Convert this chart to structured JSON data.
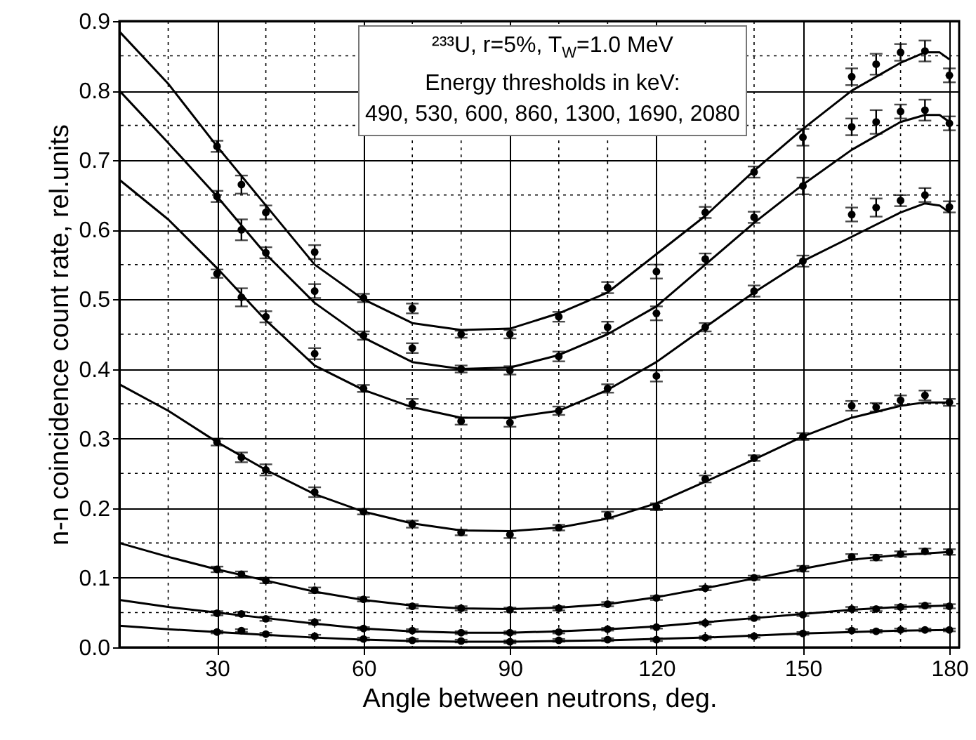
{
  "chart_data": {
    "type": "scatter",
    "xlabel": "Angle between neutrons, deg.",
    "ylabel": "n-n coincidence count rate, rel.units",
    "annotations": [
      "²³³U, r=5%, T$_{W}$=1.0 MeV",
      "Energy thresholds in keV:",
      "490, 530, 600, 860, 1300, 1690, 2080"
    ],
    "x": [
      30,
      35,
      40,
      50,
      60,
      70,
      80,
      90,
      100,
      110,
      120,
      130,
      140,
      150,
      160,
      165,
      170,
      175,
      180
    ],
    "xlim": [
      10,
      182
    ],
    "xticks": [
      {
        "value": 10,
        "label": null
      },
      {
        "value": 20,
        "label": null
      },
      30,
      {
        "value": 40,
        "label": null
      },
      {
        "value": 50,
        "label": null
      },
      60,
      {
        "value": 70,
        "label": null
      },
      {
        "value": 80,
        "label": null
      },
      90,
      {
        "value": 100,
        "label": null
      },
      {
        "value": 110,
        "label": null
      },
      120,
      {
        "value": 130,
        "label": null
      },
      {
        "value": 140,
        "label": null
      },
      150,
      {
        "value": 160,
        "label": null
      },
      {
        "value": 170,
        "label": null
      },
      180
    ],
    "ylim": [
      0,
      0.9
    ],
    "yticks": [
      {
        "value": 0,
        "label": "0.0"
      },
      {
        "value": 0.05,
        "label": null
      },
      {
        "value": 0.1,
        "label": "0.1"
      },
      {
        "value": 0.15,
        "label": null
      },
      {
        "value": 0.2,
        "label": "0.2"
      },
      {
        "value": 0.25,
        "label": null
      },
      {
        "value": 0.3,
        "label": "0.3"
      },
      {
        "value": 0.35,
        "label": null
      },
      {
        "value": 0.4,
        "label": "0.4"
      },
      {
        "value": 0.45,
        "label": null
      },
      {
        "value": 0.5,
        "label": "0.5"
      },
      {
        "value": 0.55,
        "label": null
      },
      {
        "value": 0.6,
        "label": "0.6"
      },
      {
        "value": 0.65,
        "label": null
      },
      {
        "value": 0.7,
        "label": "0.7"
      },
      {
        "value": 0.75,
        "label": null
      },
      {
        "value": 0.8,
        "label": "0.8"
      },
      {
        "value": 0.85,
        "label": null
      },
      {
        "value": 0.9,
        "label": "0.9"
      }
    ],
    "grid": true,
    "marker": "circle",
    "line_style": "solid",
    "series": [
      {
        "color": "#000000",
        "values": [
          0.72,
          0.665,
          0.625,
          0.568,
          0.502,
          0.487,
          0.45,
          0.45,
          0.475,
          0.517,
          0.54,
          0.625,
          0.683,
          0.733,
          0.82,
          0.838,
          0.855,
          0.857,
          0.822
        ],
        "errors": [
          0.008,
          0.013,
          0.01,
          0.01,
          0.006,
          0.007,
          0.005,
          0.006,
          0.007,
          0.008,
          0.01,
          0.008,
          0.008,
          0.012,
          0.012,
          0.015,
          0.012,
          0.015,
          0.01
        ]
      },
      {
        "color": "#000000",
        "values": [
          0.648,
          0.6,
          0.567,
          0.512,
          0.448,
          0.43,
          0.4,
          0.398,
          0.418,
          0.46,
          0.48,
          0.558,
          0.618,
          0.663,
          0.748,
          0.755,
          0.77,
          0.772,
          0.753
        ],
        "errors": [
          0.008,
          0.015,
          0.008,
          0.01,
          0.006,
          0.007,
          0.005,
          0.006,
          0.007,
          0.008,
          0.01,
          0.008,
          0.008,
          0.012,
          0.012,
          0.017,
          0.01,
          0.015,
          0.01
        ]
      },
      {
        "color": "#000000",
        "values": [
          0.537,
          0.503,
          0.475,
          0.422,
          0.372,
          0.35,
          0.325,
          0.323,
          0.34,
          0.372,
          0.39,
          0.46,
          0.512,
          0.555,
          0.622,
          0.632,
          0.642,
          0.65,
          0.633
        ],
        "errors": [
          0.006,
          0.013,
          0.008,
          0.008,
          0.005,
          0.007,
          0.005,
          0.006,
          0.006,
          0.006,
          0.008,
          0.006,
          0.008,
          0.008,
          0.01,
          0.013,
          0.008,
          0.01,
          0.008
        ]
      },
      {
        "color": "#000000",
        "values": [
          0.295,
          0.273,
          0.255,
          0.223,
          0.195,
          0.177,
          0.165,
          0.162,
          0.172,
          0.19,
          0.202,
          0.242,
          0.272,
          0.303,
          0.347,
          0.345,
          0.355,
          0.362,
          0.352
        ],
        "errors": [
          0.005,
          0.007,
          0.008,
          0.007,
          0.004,
          0.005,
          0.004,
          0.005,
          0.004,
          0.005,
          0.005,
          0.005,
          0.004,
          0.005,
          0.007,
          0.006,
          0.007,
          0.007,
          0.005
        ]
      },
      {
        "color": "#000000",
        "values": [
          0.112,
          0.105,
          0.096,
          0.082,
          0.069,
          0.059,
          0.056,
          0.054,
          0.056,
          0.062,
          0.071,
          0.085,
          0.1,
          0.113,
          0.13,
          0.129,
          0.134,
          0.138,
          0.137
        ],
        "errors": [
          0.004,
          0.004,
          0.004,
          0.004,
          0.003,
          0.003,
          0.003,
          0.003,
          0.003,
          0.003,
          0.003,
          0.003,
          0.003,
          0.004,
          0.004,
          0.004,
          0.004,
          0.004,
          0.004
        ]
      },
      {
        "color": "#000000",
        "values": [
          0.049,
          0.048,
          0.041,
          0.036,
          0.027,
          0.024,
          0.021,
          0.021,
          0.022,
          0.026,
          0.029,
          0.035,
          0.042,
          0.047,
          0.055,
          0.055,
          0.058,
          0.06,
          0.059
        ],
        "errors": [
          0.003,
          0.003,
          0.003,
          0.003,
          0.002,
          0.002,
          0.002,
          0.002,
          0.002,
          0.002,
          0.002,
          0.002,
          0.002,
          0.002,
          0.003,
          0.003,
          0.003,
          0.003,
          0.003
        ]
      },
      {
        "color": "#000000",
        "values": [
          0.022,
          0.024,
          0.019,
          0.016,
          0.012,
          0.01,
          0.009,
          0.008,
          0.01,
          0.011,
          0.011,
          0.014,
          0.016,
          0.02,
          0.024,
          0.023,
          0.025,
          0.025,
          0.025
        ],
        "errors": [
          0.002,
          0.002,
          0.002,
          0.002,
          0.002,
          0.002,
          0.002,
          0.002,
          0.002,
          0.002,
          0.002,
          0.002,
          0.002,
          0.002,
          0.002,
          0.002,
          0.002,
          0.002,
          0.002
        ]
      },
      {
        "type": "line",
        "marker": "none",
        "color": "#000000",
        "x": [
          10,
          20,
          30,
          40,
          50,
          60,
          70,
          80,
          90,
          100,
          110,
          120,
          130,
          140,
          150,
          160,
          170,
          175,
          178,
          180
        ],
        "values": [
          0.885,
          0.81,
          0.72,
          0.635,
          0.55,
          0.5,
          0.466,
          0.456,
          0.458,
          0.48,
          0.51,
          0.565,
          0.62,
          0.685,
          0.745,
          0.8,
          0.84,
          0.855,
          0.855,
          0.845
        ]
      },
      {
        "type": "line",
        "marker": "none",
        "color": "#000000",
        "x": [
          10,
          20,
          30,
          40,
          50,
          60,
          70,
          80,
          90,
          100,
          110,
          120,
          130,
          140,
          150,
          160,
          170,
          175,
          178,
          180
        ],
        "values": [
          0.8,
          0.725,
          0.648,
          0.565,
          0.495,
          0.445,
          0.41,
          0.4,
          0.402,
          0.42,
          0.45,
          0.49,
          0.55,
          0.61,
          0.665,
          0.715,
          0.755,
          0.765,
          0.765,
          0.755
        ]
      },
      {
        "type": "line",
        "marker": "none",
        "color": "#000000",
        "x": [
          10,
          20,
          30,
          40,
          50,
          60,
          70,
          80,
          90,
          100,
          110,
          120,
          130,
          140,
          150,
          160,
          170,
          175,
          178,
          180
        ],
        "values": [
          0.672,
          0.615,
          0.545,
          0.47,
          0.405,
          0.37,
          0.345,
          0.33,
          0.33,
          0.34,
          0.37,
          0.41,
          0.46,
          0.51,
          0.555,
          0.59,
          0.625,
          0.638,
          0.635,
          0.625
        ]
      },
      {
        "type": "line",
        "marker": "none",
        "color": "#000000",
        "x": [
          10,
          20,
          30,
          40,
          50,
          60,
          70,
          80,
          90,
          100,
          110,
          120,
          130,
          140,
          150,
          160,
          170,
          175,
          180
        ],
        "values": [
          0.378,
          0.34,
          0.295,
          0.255,
          0.22,
          0.195,
          0.178,
          0.168,
          0.167,
          0.172,
          0.185,
          0.207,
          0.238,
          0.27,
          0.303,
          0.33,
          0.347,
          0.352,
          0.352
        ]
      },
      {
        "type": "line",
        "marker": "none",
        "color": "#000000",
        "x": [
          10,
          20,
          30,
          40,
          50,
          60,
          70,
          80,
          90,
          100,
          110,
          120,
          130,
          140,
          150,
          160,
          170,
          180
        ],
        "values": [
          0.15,
          0.13,
          0.112,
          0.096,
          0.08,
          0.068,
          0.06,
          0.056,
          0.055,
          0.057,
          0.062,
          0.072,
          0.085,
          0.099,
          0.113,
          0.126,
          0.133,
          0.137
        ]
      },
      {
        "type": "line",
        "marker": "none",
        "color": "#000000",
        "x": [
          10,
          20,
          30,
          40,
          50,
          60,
          70,
          80,
          90,
          100,
          110,
          120,
          130,
          140,
          150,
          160,
          170,
          180
        ],
        "values": [
          0.068,
          0.058,
          0.05,
          0.042,
          0.034,
          0.027,
          0.023,
          0.021,
          0.021,
          0.023,
          0.026,
          0.03,
          0.036,
          0.042,
          0.048,
          0.054,
          0.058,
          0.06
        ]
      },
      {
        "type": "line",
        "marker": "none",
        "color": "#000000",
        "x": [
          10,
          20,
          30,
          40,
          50,
          60,
          70,
          80,
          90,
          100,
          110,
          120,
          130,
          140,
          150,
          160,
          170,
          180
        ],
        "values": [
          0.031,
          0.026,
          0.022,
          0.018,
          0.014,
          0.011,
          0.009,
          0.008,
          0.008,
          0.009,
          0.01,
          0.012,
          0.014,
          0.017,
          0.02,
          0.022,
          0.024,
          0.025
        ]
      }
    ]
  }
}
